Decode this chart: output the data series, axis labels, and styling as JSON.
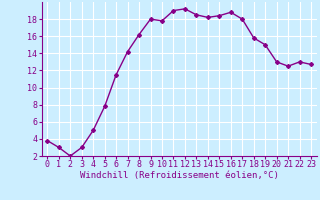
{
  "x": [
    0,
    1,
    2,
    3,
    4,
    5,
    6,
    7,
    8,
    9,
    10,
    11,
    12,
    13,
    14,
    15,
    16,
    17,
    18,
    19,
    20,
    21,
    22,
    23
  ],
  "y": [
    3.8,
    3.0,
    2.0,
    3.0,
    5.0,
    7.8,
    11.5,
    14.2,
    16.2,
    18.0,
    17.8,
    19.0,
    19.2,
    18.5,
    18.2,
    18.4,
    18.8,
    18.0,
    15.8,
    15.0,
    13.0,
    12.5,
    13.0,
    12.7
  ],
  "line_color": "#880088",
  "bg_color": "#cceeff",
  "grid_color": "#ffffff",
  "xlabel": "Windchill (Refroidissement éolien,°C)",
  "xlabel_fontsize": 6.5,
  "tick_fontsize": 6.0,
  "ylim": [
    2,
    20
  ],
  "yticks": [
    2,
    4,
    6,
    8,
    10,
    12,
    14,
    16,
    18
  ],
  "xticks": [
    0,
    1,
    2,
    3,
    4,
    5,
    6,
    7,
    8,
    9,
    10,
    11,
    12,
    13,
    14,
    15,
    16,
    17,
    18,
    19,
    20,
    21,
    22,
    23
  ],
  "marker": "D",
  "marker_size": 2.0,
  "line_width": 1.0
}
